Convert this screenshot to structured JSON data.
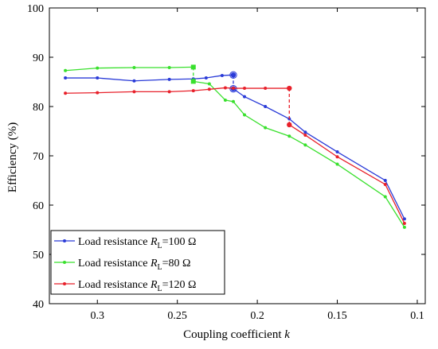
{
  "chart_data": {
    "type": "line",
    "xlabel": "Coupling coefficient",
    "xlabel_var": "k",
    "ylabel": "Efficiency (%)",
    "xlim": [
      0.33,
      0.095
    ],
    "ylim": [
      40,
      100
    ],
    "x_reversed": true,
    "grid": false,
    "legend_position": "bottom-left",
    "x_ticks": [
      {
        "value": 0.3,
        "label": "0.3"
      },
      {
        "value": 0.25,
        "label": "0.25"
      },
      {
        "value": 0.2,
        "label": "0.2"
      },
      {
        "value": 0.15,
        "label": "0.15"
      },
      {
        "value": 0.1,
        "label": "0.1"
      }
    ],
    "y_ticks": [
      {
        "value": 40,
        "label": "40"
      },
      {
        "value": 50,
        "label": "50"
      },
      {
        "value": 60,
        "label": "60"
      },
      {
        "value": 70,
        "label": "70"
      },
      {
        "value": 80,
        "label": "80"
      },
      {
        "value": 90,
        "label": "90"
      },
      {
        "value": 100,
        "label": "100"
      }
    ],
    "series": [
      {
        "name": "Load resistance RL=100 Ω",
        "legend_prefix": "Load resistance ",
        "legend_var": "R",
        "legend_sub": "L",
        "legend_suffix": "=100 Ω",
        "color": "#2a3bd8",
        "x": [
          0.32,
          0.3,
          0.277,
          0.255,
          0.24,
          0.232,
          0.222,
          0.215,
          0.215,
          0.208,
          0.195,
          0.18,
          0.17,
          0.15,
          0.12,
          0.108
        ],
        "y": [
          85.8,
          85.8,
          85.2,
          85.5,
          85.6,
          85.8,
          86.3,
          86.4,
          83.6,
          82.0,
          80.0,
          77.5,
          74.8,
          70.8,
          65.0,
          57.2
        ],
        "switch_markers": [
          {
            "x": 0.215,
            "y": 86.4
          },
          {
            "x": 0.215,
            "y": 83.6
          }
        ],
        "switch_dashed": {
          "x": 0.215,
          "y_from": 86.4,
          "y_to": 83.6
        }
      },
      {
        "name": "Load resistance RL=80 Ω",
        "legend_prefix": "Load resistance ",
        "legend_var": "R",
        "legend_sub": "L",
        "legend_suffix": "=80 Ω",
        "color": "#39e02d",
        "x": [
          0.32,
          0.3,
          0.277,
          0.255,
          0.24,
          0.24,
          0.23,
          0.22,
          0.215,
          0.208,
          0.195,
          0.18,
          0.17,
          0.15,
          0.12,
          0.108
        ],
        "y": [
          87.3,
          87.8,
          87.9,
          87.9,
          88.0,
          85.1,
          84.6,
          81.3,
          81.0,
          78.3,
          75.7,
          74.0,
          72.2,
          68.3,
          61.7,
          55.5
        ],
        "switch_markers": [
          {
            "x": 0.24,
            "y": 88.0
          },
          {
            "x": 0.24,
            "y": 85.1
          }
        ],
        "switch_dashed": {
          "x": 0.24,
          "y_from": 88.0,
          "y_to": 85.1
        }
      },
      {
        "name": "Load resistance RL=120 Ω",
        "legend_prefix": "Load resistance ",
        "legend_var": "R",
        "legend_sub": "L",
        "legend_suffix": "=120 Ω",
        "color": "#e8202a",
        "x": [
          0.32,
          0.3,
          0.277,
          0.255,
          0.24,
          0.23,
          0.22,
          0.215,
          0.208,
          0.195,
          0.18,
          0.18,
          0.17,
          0.15,
          0.12,
          0.108
        ],
        "y": [
          82.7,
          82.8,
          83.0,
          83.0,
          83.2,
          83.5,
          83.8,
          83.7,
          83.7,
          83.7,
          83.7,
          76.3,
          74.2,
          69.8,
          64.2,
          56.3
        ],
        "switch_markers": [
          {
            "x": 0.18,
            "y": 83.7
          },
          {
            "x": 0.18,
            "y": 76.3
          }
        ],
        "switch_dashed": {
          "x": 0.18,
          "y_from": 83.7,
          "y_to": 76.3
        }
      }
    ]
  }
}
